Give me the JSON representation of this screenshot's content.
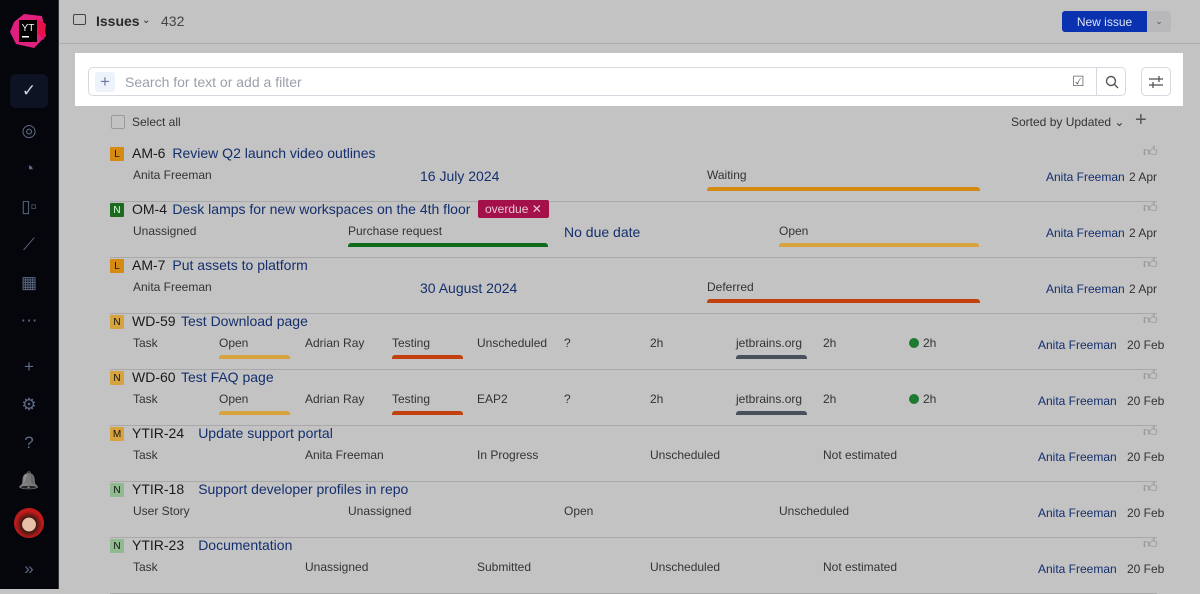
{
  "app": {
    "logo_text": "YT"
  },
  "sidebar": {
    "items": [
      {
        "name": "issues",
        "icon": "check-circle-icon",
        "glyph": "✓",
        "active": true
      },
      {
        "name": "helpdesk",
        "icon": "lifebuoy-icon",
        "glyph": "◎"
      },
      {
        "name": "projects",
        "icon": "spiral-icon",
        "glyph": "◔"
      },
      {
        "name": "agile-boards",
        "icon": "board-icon",
        "glyph": "▯▫"
      },
      {
        "name": "reports",
        "icon": "chart-icon",
        "glyph": "⟋"
      },
      {
        "name": "apps",
        "icon": "grid-icon",
        "glyph": "▦"
      },
      {
        "name": "more",
        "icon": "more-icon",
        "glyph": "⋯"
      },
      {
        "name": "create",
        "icon": "plus-icon",
        "glyph": "+"
      },
      {
        "name": "administration",
        "icon": "gear-icon",
        "glyph": "⚙"
      },
      {
        "name": "help",
        "icon": "help-icon",
        "glyph": "?"
      },
      {
        "name": "notifications",
        "icon": "bell-icon",
        "glyph": "🔔"
      },
      {
        "name": "profile",
        "icon": "avatar",
        "glyph": "●"
      },
      {
        "name": "expand",
        "icon": "double-chevron-right-icon",
        "glyph": "»"
      }
    ]
  },
  "header": {
    "title": "Issues",
    "count": "432",
    "new_issue": "New issue"
  },
  "search": {
    "placeholder": "Search for text or add a filter",
    "value": ""
  },
  "list": {
    "select_all": "Select all",
    "sort": "Sorted by Updated",
    "colors": {
      "accent": "#0a32b0",
      "link": "#142f6e",
      "overdue": "#a4104a"
    }
  },
  "issues": [
    {
      "badge": "L",
      "badge_color": "#d58a12",
      "id": "AM-6",
      "summary": "Review Q2 launch video outlines",
      "fields": [
        {
          "text": "Anita Freeman"
        },
        {
          "text": "16 July 2024",
          "large": true
        },
        {
          "text": "Waiting",
          "bar": "#d58a12"
        }
      ],
      "reporter": "Anita Freeman",
      "updated": "2 Apr"
    },
    {
      "badge": "N",
      "badge_color": "#1b6a1e",
      "id": "OM-4",
      "summary": "Desk lamps for new workspaces on the 4th floor",
      "tag": "overdue ✕",
      "fields": [
        {
          "text": "Unassigned"
        },
        {
          "text": "Purchase request",
          "bar": "#0f6b1a"
        },
        {
          "text": "No due date",
          "large": true
        },
        {
          "text": "Open",
          "bar": "#d6a33e"
        }
      ],
      "reporter": "Anita Freeman",
      "updated": "2 Apr"
    },
    {
      "badge": "L",
      "badge_color": "#d58a12",
      "id": "AM-7",
      "summary": "Put assets to platform",
      "fields": [
        {
          "text": "Anita Freeman"
        },
        {
          "text": "30 August 2024",
          "large": true
        },
        {
          "text": "Deferred",
          "bar": "#c2410c"
        }
      ],
      "reporter": "Anita Freeman",
      "updated": "2 Apr"
    },
    {
      "badge": "N",
      "badge_color": "#d6a33e",
      "id": "WD-59",
      "summary": "Test Download page",
      "fields": [
        {
          "text": "Task"
        },
        {
          "text": "Open",
          "bar": "#d6a33e"
        },
        {
          "text": "Adrian Ray"
        },
        {
          "text": "Testing",
          "bar": "#c2410c"
        },
        {
          "text": "Unscheduled"
        },
        {
          "text": "?"
        },
        {
          "text": "2h"
        },
        {
          "text": "jetbrains.org",
          "bar": "#4a4f5c"
        },
        {
          "text": "2h"
        },
        {
          "text": "2h",
          "dot": true
        }
      ],
      "reporter": "Anita Freeman",
      "updated": "20 Feb"
    },
    {
      "badge": "N",
      "badge_color": "#d6a33e",
      "id": "WD-60",
      "summary": "Test FAQ page",
      "fields": [
        {
          "text": "Task"
        },
        {
          "text": "Open",
          "bar": "#d6a33e"
        },
        {
          "text": "Adrian Ray"
        },
        {
          "text": "Testing",
          "bar": "#c2410c"
        },
        {
          "text": "EAP2"
        },
        {
          "text": "?"
        },
        {
          "text": "2h"
        },
        {
          "text": "jetbrains.org",
          "bar": "#4a4f5c"
        },
        {
          "text": "2h"
        },
        {
          "text": "2h",
          "dot": true
        }
      ],
      "reporter": "Anita Freeman",
      "updated": "20 Feb"
    },
    {
      "badge": "M",
      "badge_color": "#d6a33e",
      "id": "YTIR-24",
      "summary": "Update support portal",
      "fields": [
        {
          "text": "Task"
        },
        {
          "text": "Anita Freeman"
        },
        {
          "text": "In Progress"
        },
        {
          "text": "Unscheduled"
        },
        {
          "text": "Not estimated"
        }
      ],
      "reporter": "Anita Freeman",
      "updated": "20 Feb"
    },
    {
      "badge": "N",
      "badge_color": "#8fb98f",
      "id": "YTIR-18",
      "summary": "Support developer profiles in repo",
      "fields": [
        {
          "text": "User Story"
        },
        {
          "text": "Unassigned"
        },
        {
          "text": "Open"
        },
        {
          "text": "Unscheduled"
        }
      ],
      "reporter": "Anita Freeman",
      "updated": "20 Feb"
    },
    {
      "badge": "N",
      "badge_color": "#8fb98f",
      "id": "YTIR-23",
      "summary": "Documentation",
      "fields": [
        {
          "text": "Task"
        },
        {
          "text": "Unassigned"
        },
        {
          "text": "Submitted"
        },
        {
          "text": "Unscheduled"
        },
        {
          "text": "Not estimated"
        }
      ],
      "reporter": "Anita Freeman",
      "updated": "20 Feb"
    }
  ]
}
